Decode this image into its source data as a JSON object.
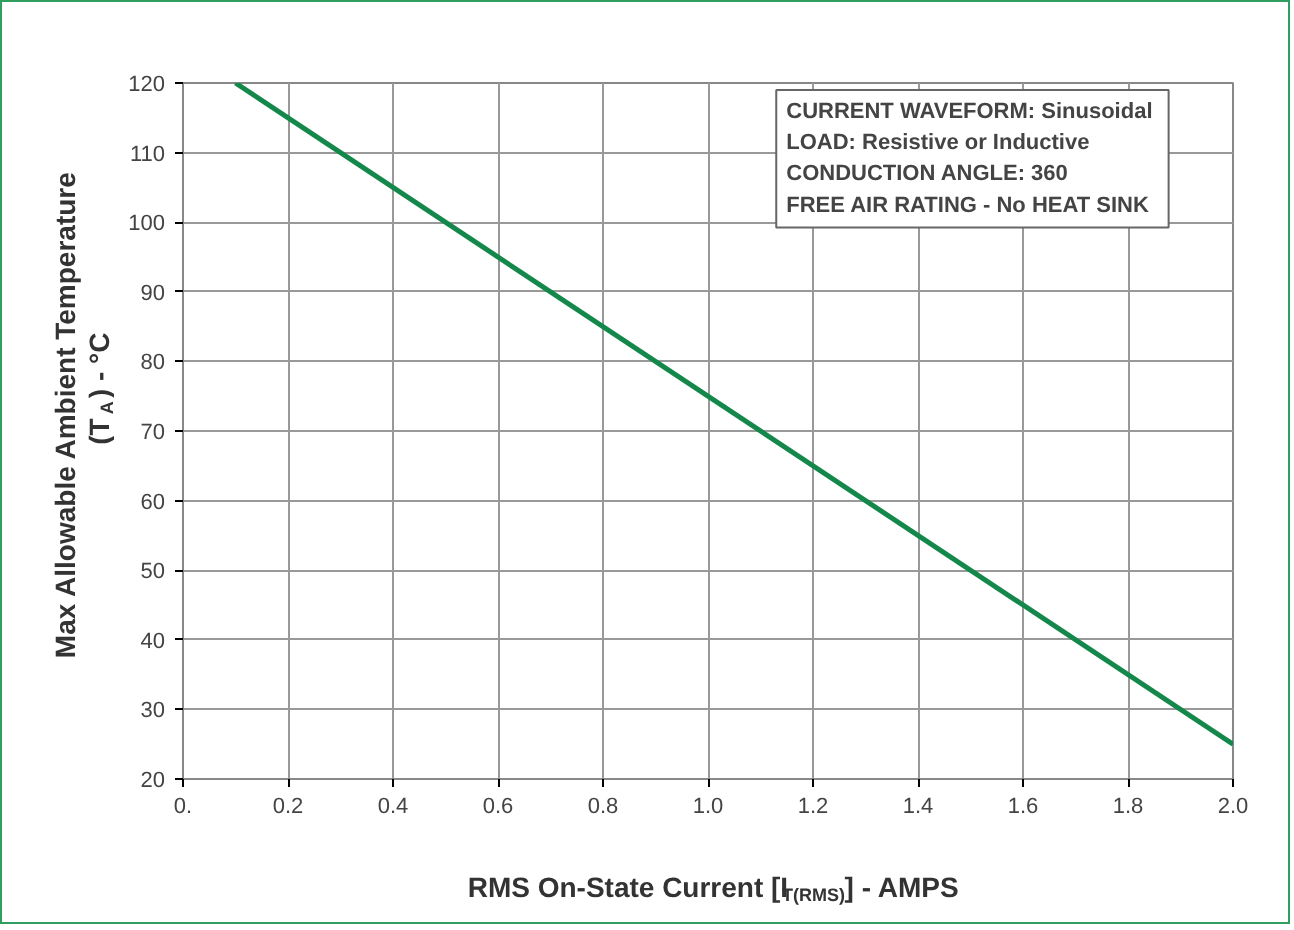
{
  "chart_data": {
    "type": "line",
    "xlabel": "RMS On-State Current [I$_{T(RMS)}$] - AMPS",
    "ylabel": "Max Allowable Ambient Temperature\n(T$_{A}$) - °C",
    "x": [
      0.1,
      2.0
    ],
    "series": [
      {
        "color": "#13884a",
        "values": [
          120,
          25
        ]
      }
    ],
    "xlim": [
      0,
      2.0
    ],
    "xticks": [
      {
        "value": 0,
        "label": "0."
      },
      {
        "value": 0.2,
        "label": "0.2"
      },
      {
        "value": 0.4,
        "label": "0.4"
      },
      {
        "value": 0.6,
        "label": "0.6"
      },
      {
        "value": 0.8,
        "label": "0.8"
      },
      {
        "value": 1.0,
        "label": "1.0"
      },
      {
        "value": 1.2,
        "label": "1.2"
      },
      {
        "value": 1.4,
        "label": "1.4"
      },
      {
        "value": 1.6,
        "label": "1.6"
      },
      {
        "value": 1.8,
        "label": "1.8"
      },
      {
        "value": 2.0,
        "label": "2.0"
      }
    ],
    "ylim": [
      20,
      120
    ],
    "yticks": [
      20,
      30,
      40,
      50,
      60,
      70,
      80,
      90,
      100,
      110,
      120
    ],
    "grid": true,
    "line_style": "solid",
    "annotations": [
      "CURRENT WAVEFORM:  Sinusoidal",
      "LOAD:  Resistive or Inductive",
      "CONDUCTION ANGLE:  360",
      "FREE AIR RATING - No HEAT SINK"
    ]
  }
}
